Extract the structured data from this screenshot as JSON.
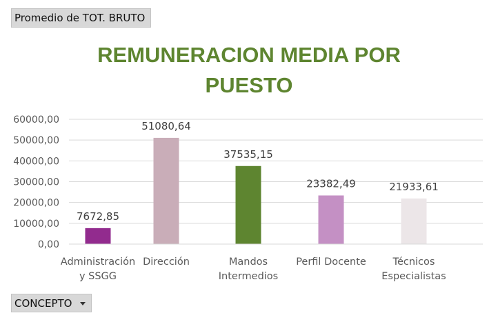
{
  "pivot": {
    "value_field": "Promedio de TOT. BRUTO",
    "row_field": "CONCEPTO"
  },
  "chart_data": {
    "type": "bar",
    "title": "REMUNERACION MEDIA POR PUESTO",
    "title_lines": [
      "REMUNERACION MEDIA POR",
      "PUESTO"
    ],
    "categories": [
      [
        "Administración",
        "y SSGG"
      ],
      [
        "Dirección"
      ],
      [
        "Mandos",
        "Intermedios"
      ],
      [
        "Perfil Docente"
      ],
      [
        "Técnicos",
        "Especialistas"
      ]
    ],
    "values": [
      7672.85,
      51080.64,
      37535.15,
      23382.49,
      21933.61
    ],
    "value_labels": [
      "7672,85",
      "51080,64",
      "37535,15",
      "23382,49",
      "21933,61"
    ],
    "bar_colors": [
      "#922b8e",
      "#c9adb8",
      "#5e8530",
      "#c490c4",
      "#ece6e8"
    ],
    "ylim": [
      0,
      60000
    ],
    "yticks": [
      0,
      10000,
      20000,
      30000,
      40000,
      50000,
      60000
    ],
    "ytick_labels": [
      "0,00",
      "10000,00",
      "20000,00",
      "30000,00",
      "40000,00",
      "50000,00",
      "60000,00"
    ],
    "grid": true,
    "legend": "none",
    "title_color": "#5e8530"
  }
}
